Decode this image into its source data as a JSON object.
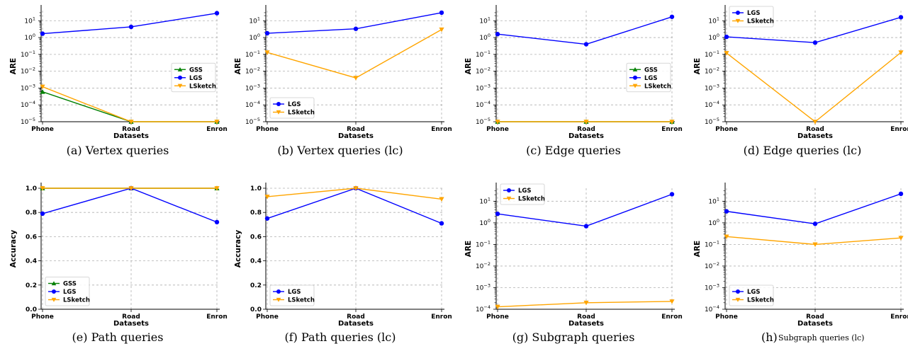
{
  "chart_data": [
    {
      "type": "line",
      "caption": "(a)  Vertex queries",
      "xlabel": "Datasets",
      "ylabel": "ARE",
      "yscale": "log",
      "ylim_exp": [
        -5,
        1
      ],
      "categories": [
        "Phone",
        "Road",
        "Enron"
      ],
      "legend_position": "center-right",
      "series": [
        {
          "name": "GSS",
          "marker": "triangle-up",
          "color": "#008000",
          "values": [
            0.0006,
            1e-05,
            1e-05
          ]
        },
        {
          "name": "LGS",
          "marker": "circle",
          "color": "#0000ff",
          "values": [
            1.7,
            4.3,
            28
          ]
        },
        {
          "name": "LSketch",
          "marker": "triangle-down",
          "color": "#ffa500",
          "values": [
            0.0012,
            1e-05,
            1e-05
          ]
        }
      ]
    },
    {
      "type": "line",
      "caption": "(b)  Vertex queries (lc)",
      "xlabel": "Datasets",
      "ylabel": "ARE",
      "yscale": "log",
      "ylim_exp": [
        -5,
        1
      ],
      "categories": [
        "Phone",
        "Road",
        "Enron"
      ],
      "legend_position": "lower-left",
      "series": [
        {
          "name": "LGS",
          "marker": "circle",
          "color": "#0000ff",
          "values": [
            1.8,
            3.3,
            30
          ]
        },
        {
          "name": "LSketch",
          "marker": "triangle-down",
          "color": "#ffa500",
          "values": [
            0.13,
            0.004,
            3
          ]
        }
      ]
    },
    {
      "type": "line",
      "caption": "(c)  Edge queries",
      "xlabel": "Datasets",
      "ylabel": "ARE",
      "yscale": "log",
      "ylim_exp": [
        -5,
        1
      ],
      "categories": [
        "Phone",
        "Road",
        "Enron"
      ],
      "legend_position": "center-right",
      "series": [
        {
          "name": "GSS",
          "marker": "triangle-up",
          "color": "#008000",
          "values": [
            1e-05,
            1e-05,
            1e-05
          ]
        },
        {
          "name": "LGS",
          "marker": "circle",
          "color": "#0000ff",
          "values": [
            1.6,
            0.4,
            17
          ]
        },
        {
          "name": "LSketch",
          "marker": "triangle-down",
          "color": "#ffa500",
          "values": [
            1e-05,
            1e-05,
            1e-05
          ]
        }
      ]
    },
    {
      "type": "line",
      "caption": "(d)  Edge queries (lc)",
      "xlabel": "Datasets",
      "ylabel": "ARE",
      "yscale": "log",
      "ylim_exp": [
        -5,
        1
      ],
      "categories": [
        "Phone",
        "Road",
        "Enron"
      ],
      "legend_position": "upper-left",
      "series": [
        {
          "name": "LGS",
          "marker": "circle",
          "color": "#0000ff",
          "values": [
            1.1,
            0.5,
            16
          ]
        },
        {
          "name": "LSketch",
          "marker": "triangle-down",
          "color": "#ffa500",
          "values": [
            0.12,
            1e-05,
            0.13
          ]
        }
      ]
    },
    {
      "type": "line",
      "caption": "(e)  Path queries",
      "xlabel": "Datasets",
      "ylabel": "Accuracy",
      "yscale": "linear",
      "ylim": [
        0,
        1
      ],
      "yticks": [
        "0.0",
        "0.2",
        "0.4",
        "0.6",
        "0.8",
        "1.0"
      ],
      "categories": [
        "Phone",
        "Road",
        "Enron"
      ],
      "legend_position": "lower-left",
      "series": [
        {
          "name": "GSS",
          "marker": "triangle-up",
          "color": "#008000",
          "values": [
            1.0,
            1.0,
            1.0
          ]
        },
        {
          "name": "LGS",
          "marker": "circle",
          "color": "#0000ff",
          "values": [
            0.79,
            1.0,
            0.72
          ]
        },
        {
          "name": "LSketch",
          "marker": "triangle-down",
          "color": "#ffa500",
          "values": [
            1.0,
            1.0,
            1.0
          ]
        }
      ]
    },
    {
      "type": "line",
      "caption": "(f)  Path queries (lc)",
      "xlabel": "Datasets",
      "ylabel": "Accuracy",
      "yscale": "linear",
      "ylim": [
        0,
        1
      ],
      "yticks": [
        "0.0",
        "0.2",
        "0.4",
        "0.6",
        "0.8",
        "1.0"
      ],
      "categories": [
        "Phone",
        "Road",
        "Enron"
      ],
      "legend_position": "lower-left",
      "series": [
        {
          "name": "LGS",
          "marker": "circle",
          "color": "#0000ff",
          "values": [
            0.75,
            1.0,
            0.71
          ]
        },
        {
          "name": "LSketch",
          "marker": "triangle-down",
          "color": "#ffa500",
          "values": [
            0.93,
            1.0,
            0.91
          ]
        }
      ]
    },
    {
      "type": "line",
      "caption": "(g)  Subgraph queries",
      "xlabel": "Datasets",
      "ylabel": "ARE",
      "yscale": "log",
      "ylim_exp": [
        -4,
        1
      ],
      "categories": [
        "Phone",
        "Road",
        "Enron"
      ],
      "legend_position": "upper-left",
      "series": [
        {
          "name": "LGS",
          "marker": "circle",
          "color": "#0000ff",
          "values": [
            2.6,
            0.7,
            21
          ]
        },
        {
          "name": "LSketch",
          "marker": "triangle-down",
          "color": "#ffa500",
          "values": [
            0.00013,
            0.0002,
            0.00023
          ]
        }
      ]
    },
    {
      "type": "line",
      "caption": "(h)",
      "caption_small": "Subgraph queries (lc)",
      "xlabel": "Datasets",
      "ylabel": "ARE",
      "yscale": "log",
      "ylim_exp": [
        -4,
        1
      ],
      "categories": [
        "Phone",
        "Road",
        "Enron"
      ],
      "legend_position": "lower-left",
      "series": [
        {
          "name": "LGS",
          "marker": "circle",
          "color": "#0000ff",
          "values": [
            3.4,
            0.9,
            22
          ]
        },
        {
          "name": "LSketch",
          "marker": "triangle-down",
          "color": "#ffa500",
          "values": [
            0.23,
            0.1,
            0.2
          ]
        }
      ]
    }
  ]
}
